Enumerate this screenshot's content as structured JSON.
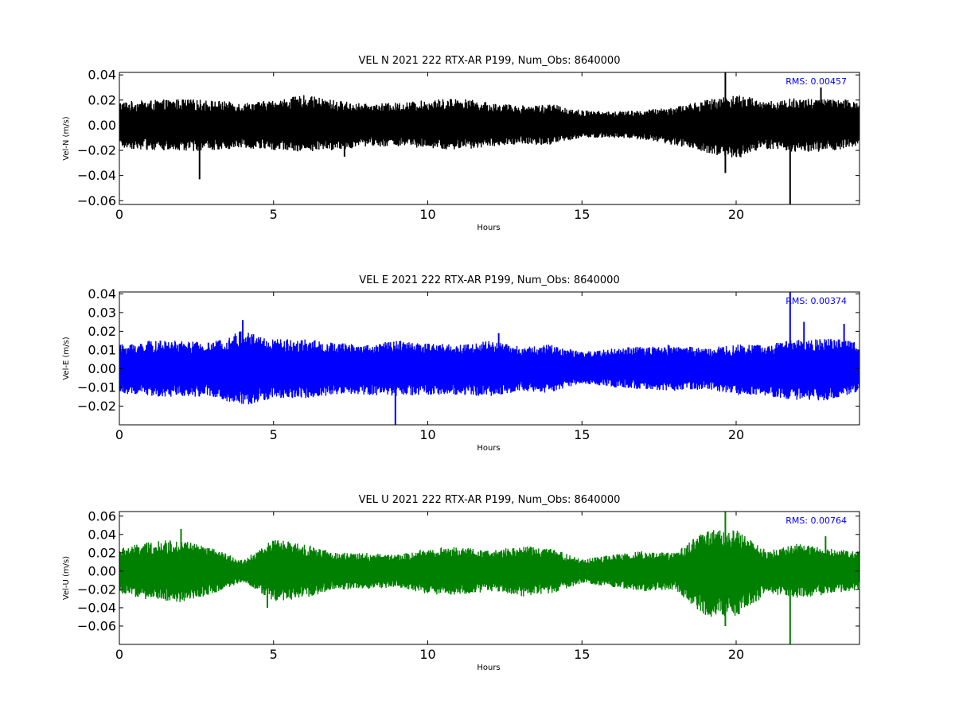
{
  "chart_data": [
    {
      "type": "line",
      "title": "VEL N 2021 222 RTX-AR  P199, Num_Obs: 8640000",
      "xlabel": "Hours",
      "ylabel": "Vel-N (m/s)",
      "xlim": [
        0,
        24
      ],
      "ylim": [
        -0.063,
        0.042
      ],
      "xticks": [
        0,
        5,
        10,
        15,
        20
      ],
      "xtick_labels": [
        "0",
        "5",
        "10",
        "15",
        "20"
      ],
      "yticks": [
        0.04,
        0.02,
        0.0,
        -0.02,
        -0.04,
        -0.06
      ],
      "ytick_labels": [
        "0.04",
        "0.02",
        "0.00",
        "−0.02",
        "−0.04",
        "−0.06"
      ],
      "annotation": "RMS:  0.00457",
      "color": "#000000",
      "grid": false,
      "series": [
        {
          "x": [
            0,
            1,
            2,
            3,
            4,
            5,
            6,
            7,
            8,
            9,
            10,
            11,
            12,
            13,
            14,
            15,
            16,
            17,
            18,
            19,
            20,
            21,
            22,
            23,
            24
          ],
          "upper": [
            0.019,
            0.02,
            0.021,
            0.02,
            0.018,
            0.02,
            0.024,
            0.02,
            0.017,
            0.018,
            0.02,
            0.022,
            0.018,
            0.016,
            0.017,
            0.012,
            0.011,
            0.012,
            0.015,
            0.02,
            0.025,
            0.019,
            0.022,
            0.021,
            0.02
          ],
          "lower": [
            -0.018,
            -0.02,
            -0.021,
            -0.02,
            -0.018,
            -0.02,
            -0.021,
            -0.02,
            -0.017,
            -0.017,
            -0.019,
            -0.02,
            -0.017,
            -0.015,
            -0.016,
            -0.01,
            -0.01,
            -0.012,
            -0.016,
            -0.022,
            -0.027,
            -0.019,
            -0.022,
            -0.021,
            -0.016
          ],
          "spikes": [
            [
              2.6,
              -0.043
            ],
            [
              7.3,
              -0.025
            ],
            [
              19.65,
              0.042
            ],
            [
              19.65,
              -0.038
            ],
            [
              21.75,
              -0.063
            ],
            [
              22.75,
              0.03
            ]
          ]
        }
      ]
    },
    {
      "type": "line",
      "title": "VEL E 2021 222 RTX-AR  P199, Num_Obs: 8640000",
      "xlabel": "Hours",
      "ylabel": "Vel-E (m/s)",
      "xlim": [
        0,
        24
      ],
      "ylim": [
        -0.03,
        0.041
      ],
      "xticks": [
        0,
        5,
        10,
        15,
        20
      ],
      "xtick_labels": [
        "0",
        "5",
        "10",
        "15",
        "20"
      ],
      "yticks": [
        0.04,
        0.03,
        0.02,
        0.01,
        0.0,
        -0.01,
        -0.02
      ],
      "ytick_labels": [
        "0.04",
        "0.03",
        "0.02",
        "0.01",
        "0.00",
        "−0.01",
        "−0.02"
      ],
      "annotation": "RMS:  0.00374",
      "color": "#0000ff",
      "grid": false,
      "series": [
        {
          "x": [
            0,
            1,
            2,
            3,
            4,
            5,
            6,
            7,
            8,
            9,
            10,
            11,
            12,
            13,
            14,
            15,
            16,
            17,
            18,
            19,
            20,
            21,
            22,
            23,
            24
          ],
          "upper": [
            0.013,
            0.015,
            0.015,
            0.014,
            0.021,
            0.016,
            0.016,
            0.014,
            0.013,
            0.015,
            0.014,
            0.013,
            0.015,
            0.012,
            0.013,
            0.009,
            0.011,
            0.012,
            0.013,
            0.011,
            0.013,
            0.013,
            0.016,
            0.016,
            0.015
          ],
          "lower": [
            -0.013,
            -0.015,
            -0.015,
            -0.015,
            -0.02,
            -0.016,
            -0.016,
            -0.014,
            -0.014,
            -0.015,
            -0.014,
            -0.014,
            -0.015,
            -0.012,
            -0.013,
            -0.008,
            -0.01,
            -0.011,
            -0.012,
            -0.011,
            -0.014,
            -0.015,
            -0.017,
            -0.017,
            -0.012
          ],
          "spikes": [
            [
              4.0,
              0.026
            ],
            [
              8.95,
              -0.03
            ],
            [
              12.3,
              0.019
            ],
            [
              21.75,
              0.041
            ],
            [
              22.2,
              0.025
            ],
            [
              23.5,
              0.024
            ]
          ]
        }
      ]
    },
    {
      "type": "line",
      "title": "VEL U 2021 222 RTX-AR  P199, Num_Obs: 8640000",
      "xlabel": "Hours",
      "ylabel": "Vel-U (m/s)",
      "xlim": [
        0,
        24
      ],
      "ylim": [
        -0.08,
        0.065
      ],
      "xticks": [
        0,
        5,
        10,
        15,
        20
      ],
      "xtick_labels": [
        "0",
        "5",
        "10",
        "15",
        "20"
      ],
      "yticks": [
        0.06,
        0.04,
        0.02,
        0.0,
        -0.02,
        -0.04,
        -0.06
      ],
      "ytick_labels": [
        "0.06",
        "0.04",
        "0.02",
        "0.00",
        "−0.02",
        "−0.04",
        "−0.06"
      ],
      "annotation": "RMS:  0.00764",
      "color": "#008000",
      "grid": false,
      "series": [
        {
          "x": [
            0,
            1,
            2,
            3,
            4,
            5,
            6,
            7,
            8,
            9,
            10,
            11,
            12,
            13,
            14,
            15,
            16,
            17,
            18,
            19,
            20,
            21,
            22,
            23,
            24
          ],
          "upper": [
            0.025,
            0.032,
            0.035,
            0.025,
            0.012,
            0.035,
            0.03,
            0.02,
            0.02,
            0.018,
            0.025,
            0.027,
            0.022,
            0.028,
            0.025,
            0.013,
            0.018,
            0.022,
            0.02,
            0.045,
            0.045,
            0.022,
            0.03,
            0.025,
            0.022
          ],
          "lower": [
            -0.025,
            -0.032,
            -0.034,
            -0.025,
            -0.012,
            -0.033,
            -0.03,
            -0.02,
            -0.02,
            -0.018,
            -0.025,
            -0.027,
            -0.022,
            -0.028,
            -0.025,
            -0.013,
            -0.018,
            -0.022,
            -0.02,
            -0.05,
            -0.05,
            -0.025,
            -0.03,
            -0.025,
            -0.02
          ],
          "spikes": [
            [
              2.0,
              0.046
            ],
            [
              4.8,
              -0.04
            ],
            [
              19.65,
              0.065
            ],
            [
              19.65,
              -0.06
            ],
            [
              21.75,
              -0.08
            ],
            [
              22.9,
              0.038
            ]
          ]
        }
      ]
    }
  ]
}
